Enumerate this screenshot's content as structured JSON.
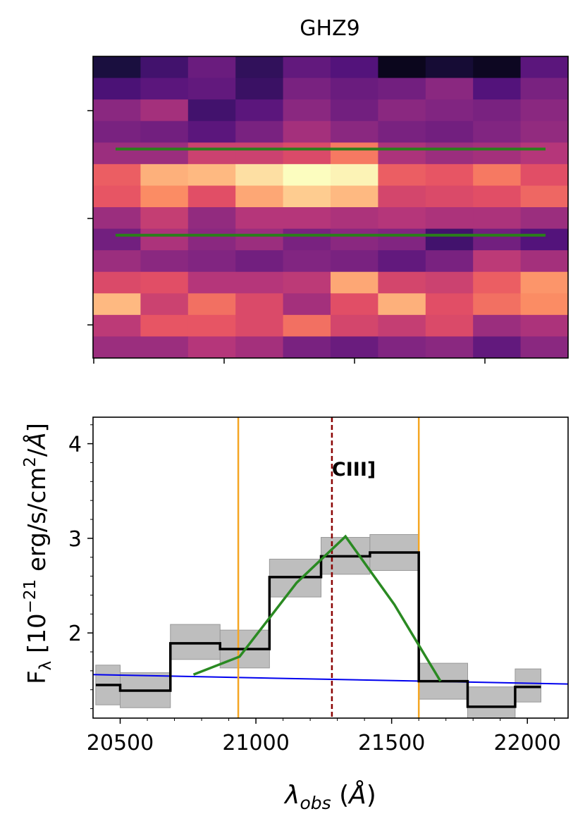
{
  "title": "GHZ9",
  "image_panel": {
    "colormap": "magma",
    "rows": 14,
    "cols": 10,
    "cells": [
      [
        0.12,
        0.22,
        0.32,
        0.18,
        0.3,
        0.26,
        0.05,
        0.1,
        0.06,
        0.28
      ],
      [
        0.24,
        0.28,
        0.3,
        0.2,
        0.36,
        0.32,
        0.34,
        0.4,
        0.26,
        0.36
      ],
      [
        0.4,
        0.46,
        0.22,
        0.28,
        0.4,
        0.34,
        0.4,
        0.38,
        0.36,
        0.4
      ],
      [
        0.36,
        0.34,
        0.28,
        0.36,
        0.46,
        0.4,
        0.36,
        0.34,
        0.38,
        0.42
      ],
      [
        0.44,
        0.44,
        0.56,
        0.56,
        0.6,
        0.72,
        0.48,
        0.44,
        0.46,
        0.5
      ],
      [
        0.66,
        0.84,
        0.86,
        0.94,
        1.0,
        0.98,
        0.66,
        0.64,
        0.72,
        0.62
      ],
      [
        0.64,
        0.76,
        0.62,
        0.82,
        0.9,
        0.86,
        0.58,
        0.6,
        0.62,
        0.68
      ],
      [
        0.44,
        0.54,
        0.42,
        0.5,
        0.5,
        0.48,
        0.5,
        0.48,
        0.48,
        0.44
      ],
      [
        0.34,
        0.48,
        0.4,
        0.44,
        0.36,
        0.4,
        0.38,
        0.22,
        0.34,
        0.26
      ],
      [
        0.44,
        0.4,
        0.38,
        0.34,
        0.38,
        0.36,
        0.3,
        0.36,
        0.52,
        0.46
      ],
      [
        0.6,
        0.62,
        0.5,
        0.5,
        0.52,
        0.82,
        0.58,
        0.56,
        0.66,
        0.78
      ],
      [
        0.86,
        0.56,
        0.7,
        0.6,
        0.46,
        0.62,
        0.84,
        0.62,
        0.7,
        0.76
      ],
      [
        0.52,
        0.64,
        0.64,
        0.6,
        0.7,
        0.58,
        0.54,
        0.6,
        0.44,
        0.48
      ],
      [
        0.44,
        0.44,
        0.5,
        0.46,
        0.36,
        0.32,
        0.38,
        0.4,
        0.3,
        0.4
      ]
    ],
    "green_line_rows": [
      4.3,
      8.3
    ],
    "line_color": "#2a7f1a"
  },
  "chart_data": {
    "type": "line",
    "xlabel": "λ_obs (Å)",
    "ylabel": "F_λ [10^-21 erg/s/cm²/Å]",
    "xlim": [
      20400,
      22150
    ],
    "ylim": [
      1.1,
      4.28
    ],
    "xticks": [
      20500,
      21000,
      21500,
      22000
    ],
    "yticks": [
      2,
      3,
      4
    ],
    "annotation": {
      "text": "CIII]",
      "x": 21280,
      "y": 3.75
    },
    "spectrum": {
      "color": "#000000",
      "band_color": "#bbbbbb",
      "edges": [
        20410,
        20500,
        20685,
        20868,
        21050,
        21240,
        21420,
        21600,
        21780,
        21955,
        22050
      ],
      "values": [
        1.45,
        1.39,
        1.89,
        1.83,
        2.59,
        2.81,
        2.85,
        1.49,
        1.22,
        1.43
      ],
      "err_low": [
        1.24,
        1.21,
        1.72,
        1.63,
        2.38,
        2.62,
        2.66,
        1.3,
        1.03,
        1.27
      ],
      "err_high": [
        1.66,
        1.58,
        2.09,
        2.03,
        2.78,
        3.01,
        3.04,
        1.68,
        1.43,
        1.62
      ]
    },
    "model": {
      "color": "#2a8a22",
      "x": [
        20770,
        20940,
        21150,
        21330,
        21510,
        21680
      ],
      "y": [
        1.56,
        1.75,
        2.53,
        3.02,
        2.3,
        1.49
      ]
    },
    "continuum": {
      "color": "#0000ee",
      "x": [
        20400,
        22150
      ],
      "y": [
        1.56,
        1.46
      ]
    },
    "vlines": [
      {
        "x": 20935,
        "color": "#f5a623",
        "style": "solid"
      },
      {
        "x": 21600,
        "color": "#f5a623",
        "style": "solid"
      },
      {
        "x": 21280,
        "color": "#8b0000",
        "style": "dashed"
      }
    ]
  }
}
